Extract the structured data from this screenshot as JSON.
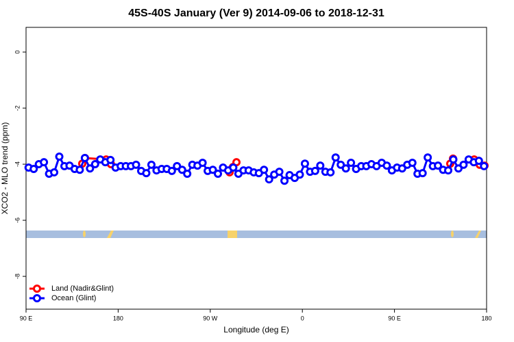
{
  "chart_data": {
    "type": "line",
    "title": "45S-40S January (Ver 9)   2014-09-06 to 2018-12-31",
    "x_label": "Longitude (deg E)",
    "y_label": "XCO2 - MLO trend (ppm)",
    "xlim": [
      90,
      540
    ],
    "ylim": [
      -9.17,
      0.88
    ],
    "xticks": [
      {
        "value": 90,
        "label": "90 E"
      },
      180,
      {
        "value": 270,
        "label": "90 W"
      },
      {
        "value": 360,
        "label": "0"
      },
      {
        "value": 450,
        "label": "90 E"
      },
      {
        "value": 540,
        "label": "180"
      }
    ],
    "yticks": [
      0,
      -2,
      -4,
      -6,
      -8
    ],
    "legend": "bottom-left",
    "series": [
      {
        "name": "Land (Nadir&Glint)",
        "color": "#ff0000",
        "x": [
          144.9,
          147.6,
          168.3,
          173.0,
          230,
          288.9,
          292.2,
          295.6,
          400,
          504.5,
          507.2,
          520,
          527.9,
          533.3,
          538.0
        ],
        "values": [
          -3.98,
          -3.78,
          -3.83,
          -4.0,
          null,
          -4.29,
          -4.1,
          -3.93,
          null,
          -3.98,
          -3.8,
          null,
          -3.83,
          -4.02,
          -4.05
        ]
      },
      {
        "name": "Ocean (Glint)",
        "color": "#0000ff",
        "x": [
          92.5,
          97.5,
          102.5,
          107.5,
          112.5,
          117.5,
          122.5,
          127.5,
          132.5,
          137.5,
          142.5,
          147.5,
          152.5,
          157.5,
          162.5,
          167.5,
          172.5,
          177.5,
          182.5,
          187.5,
          192.5,
          197.5,
          202.5,
          207.5,
          212.5,
          217.5,
          222.5,
          227.5,
          232.5,
          237.5,
          242.5,
          247.5,
          252.5,
          257.5,
          262.5,
          267.5,
          272.5,
          277.5,
          282.5,
          287.5,
          292.5,
          297.5,
          302.5,
          307.5,
          312.5,
          317.5,
          322.5,
          327.5,
          332.5,
          337.5,
          342.5,
          347.5,
          352.5,
          357.5,
          362.5,
          367.5,
          372.5,
          377.5,
          382.5,
          387.5,
          392.5,
          397.5,
          402.5,
          407.5,
          412.5,
          417.5,
          422.5,
          427.5,
          432.5,
          437.5,
          442.5,
          447.5,
          452.5,
          457.5,
          462.5,
          467.5,
          472.5,
          477.5,
          482.5,
          487.5,
          492.5,
          497.5,
          502.5,
          507.5,
          512.5,
          517.5,
          522.5,
          527.5,
          532.5,
          537.5
        ],
        "values": [
          -4.12,
          -4.17,
          -4.0,
          -3.93,
          -4.34,
          -4.29,
          -3.73,
          -4.07,
          -4.05,
          -4.17,
          -4.2,
          -3.78,
          -4.15,
          -4.0,
          -3.83,
          -3.93,
          -3.85,
          -4.12,
          -4.07,
          -4.07,
          -4.07,
          -4.02,
          -4.24,
          -4.32,
          -4.02,
          -4.22,
          -4.17,
          -4.17,
          -4.24,
          -4.07,
          -4.2,
          -4.34,
          -4.02,
          -4.05,
          -3.95,
          -4.24,
          -4.2,
          -4.34,
          -4.12,
          -4.22,
          -4.12,
          -4.34,
          -4.22,
          -4.22,
          -4.29,
          -4.32,
          -4.2,
          -4.54,
          -4.37,
          -4.27,
          -4.59,
          -4.39,
          -4.49,
          -4.37,
          -3.98,
          -4.27,
          -4.24,
          -4.05,
          -4.27,
          -4.29,
          -3.76,
          -4.02,
          -4.15,
          -3.95,
          -4.17,
          -4.07,
          -4.07,
          -4.0,
          -4.07,
          -3.95,
          -4.05,
          -4.22,
          -4.12,
          -4.15,
          -4.02,
          -3.95,
          -4.34,
          -4.32,
          -3.76,
          -4.07,
          -4.05,
          -4.2,
          -4.22,
          -3.83,
          -4.15,
          -4.02,
          -3.83,
          -3.93,
          -3.88,
          -4.07
        ]
      }
    ]
  }
}
